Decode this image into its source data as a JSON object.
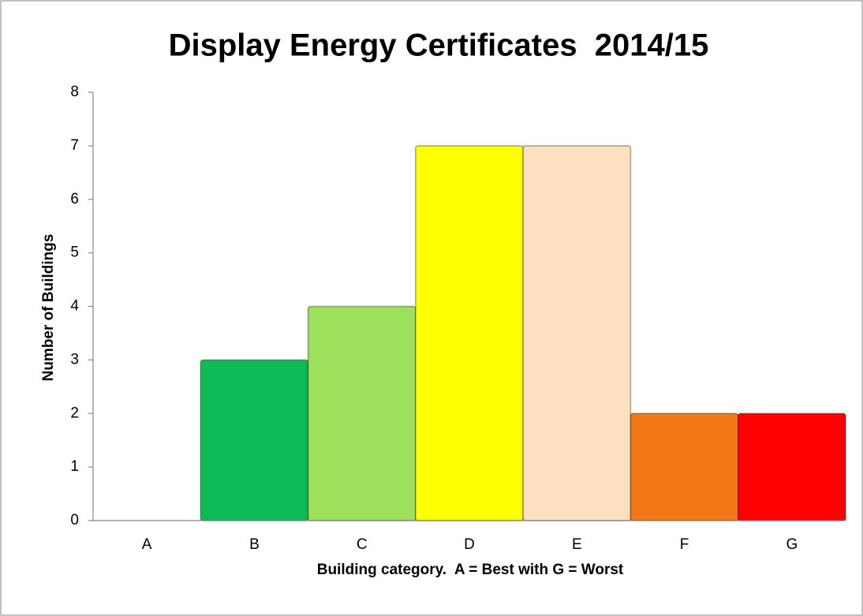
{
  "chart_data": {
    "type": "bar",
    "title": "Display Energy Certificates  2014/15",
    "categories": [
      "A",
      "B",
      "C",
      "D",
      "E",
      "F",
      "G"
    ],
    "values": [
      0,
      3,
      4,
      7,
      7,
      2,
      2
    ],
    "colors": [
      "#008054",
      "#0dba55",
      "#9de05c",
      "#ffff00",
      "#fde0c0",
      "#f27818",
      "#ff0000"
    ],
    "ylim": [
      0,
      8
    ],
    "yticks": [
      0,
      1,
      2,
      3,
      4,
      5,
      6,
      7,
      8
    ],
    "x_label": "Building category.  A = Best with G = Worst",
    "y_label": "Number of Buildings"
  }
}
